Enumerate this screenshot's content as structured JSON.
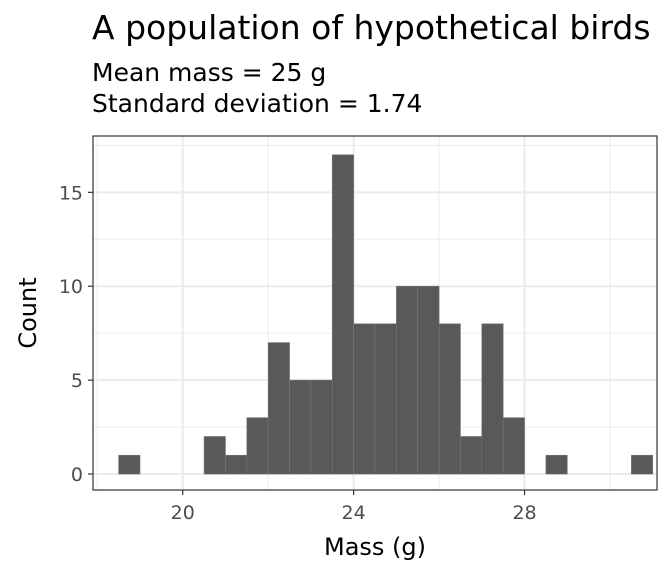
{
  "chart_data": {
    "type": "bar",
    "title": "A population of hypothetical birds",
    "subtitle_lines": [
      "Mean mass = 25 g",
      "Standard deviation = 1.74"
    ],
    "xlabel": "Mass (g)",
    "ylabel": "Count",
    "xlim": [
      17.9,
      31.1
    ],
    "ylim": [
      -0.85,
      18.0
    ],
    "x_ticks": [
      20,
      24,
      28
    ],
    "y_ticks": [
      0,
      5,
      10,
      15
    ],
    "bin_width": 0.5,
    "bins": [
      {
        "x0": 18.5,
        "count": 1
      },
      {
        "x0": 20.5,
        "count": 2
      },
      {
        "x0": 21.0,
        "count": 1
      },
      {
        "x0": 21.5,
        "count": 3
      },
      {
        "x0": 22.0,
        "count": 7
      },
      {
        "x0": 22.5,
        "count": 5
      },
      {
        "x0": 23.0,
        "count": 5
      },
      {
        "x0": 23.5,
        "count": 17
      },
      {
        "x0": 24.0,
        "count": 8
      },
      {
        "x0": 24.5,
        "count": 8
      },
      {
        "x0": 25.0,
        "count": 10
      },
      {
        "x0": 25.5,
        "count": 10
      },
      {
        "x0": 26.0,
        "count": 8
      },
      {
        "x0": 26.5,
        "count": 2
      },
      {
        "x0": 27.0,
        "count": 8
      },
      {
        "x0": 27.5,
        "count": 3
      },
      {
        "x0": 28.5,
        "count": 1
      },
      {
        "x0": 30.5,
        "count": 1
      }
    ],
    "grid": true,
    "colors": {
      "bar": "#595959",
      "panel_border": "#333333",
      "grid": "#ebebeb"
    }
  }
}
